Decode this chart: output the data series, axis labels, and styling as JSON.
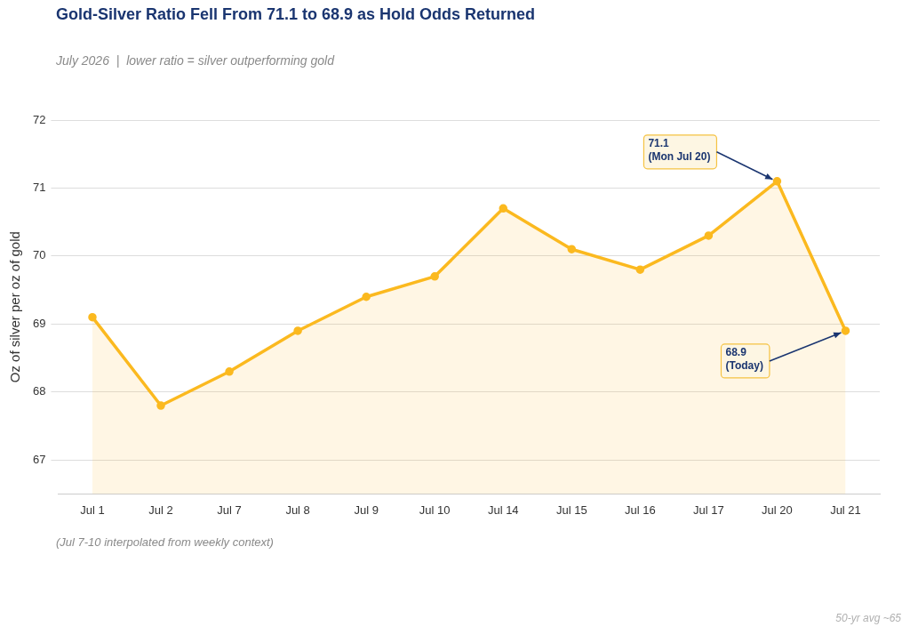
{
  "chart_data": {
    "type": "area",
    "title": "Gold-Silver Ratio Fell From 71.1 to 68.9 as Hold Odds Returned",
    "subtitle": "July 2026  |  lower ratio = silver outperforming gold",
    "ylabel": "Oz of silver per oz of gold",
    "categories": [
      "Jul 1",
      "Jul 2",
      "Jul 7",
      "Jul 8",
      "Jul 9",
      "Jul 10",
      "Jul 14",
      "Jul 15",
      "Jul 16",
      "Jul 17",
      "Jul 20",
      "Jul 21"
    ],
    "series": [
      {
        "color": "#fbb91f",
        "values": [
          69.1,
          67.8,
          68.3,
          68.9,
          69.4,
          69.7,
          70.7,
          70.1,
          69.8,
          70.3,
          71.1,
          68.9
        ]
      }
    ],
    "ylim": [
      66.5,
      72
    ],
    "yticks": [
      67,
      68,
      69,
      70,
      71,
      72
    ],
    "grid": "y",
    "legend": false,
    "marker": "circle",
    "line_style": "solid",
    "annotations": [
      {
        "text": "71.1\n(Mon Jul 20)",
        "x": "Jul 20",
        "y": 71.1
      },
      {
        "text": "68.9\n(Today)",
        "x": "Jul 21",
        "y": 68.9
      },
      "(Jul 7-10 interpolated from weekly context)",
      "50-yr avg ~65"
    ]
  }
}
